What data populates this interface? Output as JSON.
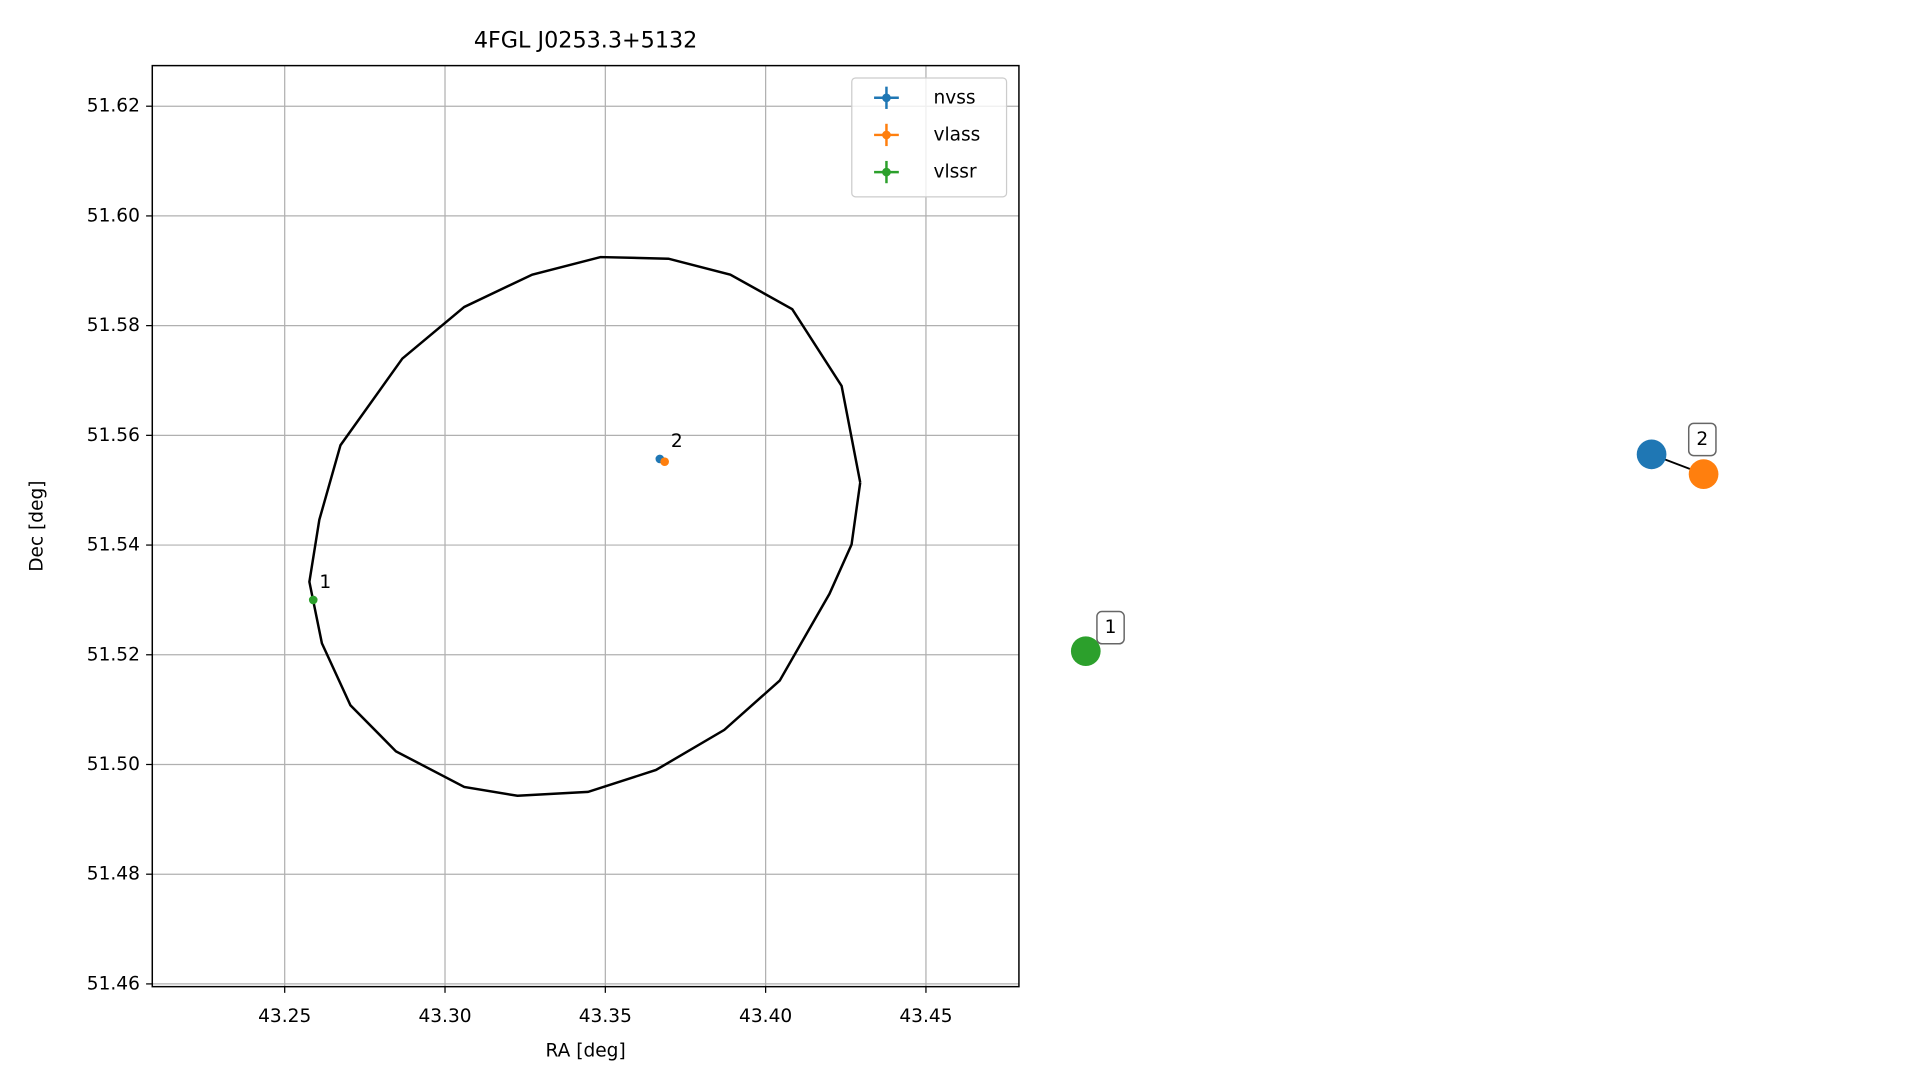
{
  "chart_data": [
    {
      "type": "scatter",
      "title": "4FGL J0253.3+5132",
      "x_label": "RA [deg]",
      "y_label": "Dec [deg]",
      "xlim": [
        43.2087,
        43.479
      ],
      "ylim": [
        51.4595,
        51.6274
      ],
      "xticks": [
        43.25,
        {
          "value": 43.3,
          "label": "43.30"
        },
        43.35,
        {
          "value": 43.4,
          "label": "43.40"
        },
        43.45
      ],
      "yticks": [
        51.46,
        51.48,
        {
          "value": 51.5,
          "label": "51.50"
        },
        51.52,
        51.54,
        51.56,
        51.58,
        {
          "value": 51.6,
          "label": "51.60"
        },
        51.62
      ],
      "grid": true,
      "legend": "upper right",
      "series": [
        {
          "name": "nvss",
          "color": "#1f77b4",
          "x": [
            43.367
          ],
          "y": [
            51.5557
          ]
        },
        {
          "name": "vlass",
          "color": "#ff7f0e",
          "x": [
            43.3685
          ],
          "y": [
            51.5552
          ]
        },
        {
          "name": "vlssr",
          "color": "#2ca02c",
          "x": [
            43.2589
          ],
          "y": [
            51.53
          ]
        }
      ],
      "ellipse": {
        "color": "#000000",
        "x": [
          43.4295,
          43.4268,
          43.4199,
          43.4044,
          43.3871,
          43.3658,
          43.3446,
          43.3226,
          43.306,
          43.2847,
          43.2705,
          43.2616,
          43.2577,
          43.2608,
          43.2674,
          43.2867,
          43.306,
          43.3272,
          43.3485,
          43.3697,
          43.389,
          43.4083,
          43.4237,
          43.4295
        ],
        "y": [
          51.5514,
          51.5401,
          51.5311,
          51.5153,
          51.5063,
          51.499,
          51.495,
          51.4943,
          51.4959,
          51.5024,
          51.5108,
          51.5221,
          51.5333,
          51.5446,
          51.5582,
          51.574,
          51.5834,
          51.5893,
          51.5925,
          51.5922,
          51.5893,
          51.583,
          51.569,
          51.5514
        ]
      },
      "annotations": [
        {
          "text": "2",
          "x": 43.3685,
          "y": 51.5557
        },
        {
          "text": "1",
          "x": 43.2589,
          "y": 51.53
        }
      ]
    },
    {
      "type": "network",
      "groups": [
        {
          "label": "1",
          "nodes": [
            {
              "color": "#2ca02c"
            }
          ]
        },
        {
          "label": "2",
          "nodes": [
            {
              "color": "#1f77b4"
            },
            {
              "color": "#ff7f0e"
            }
          ]
        }
      ]
    }
  ]
}
